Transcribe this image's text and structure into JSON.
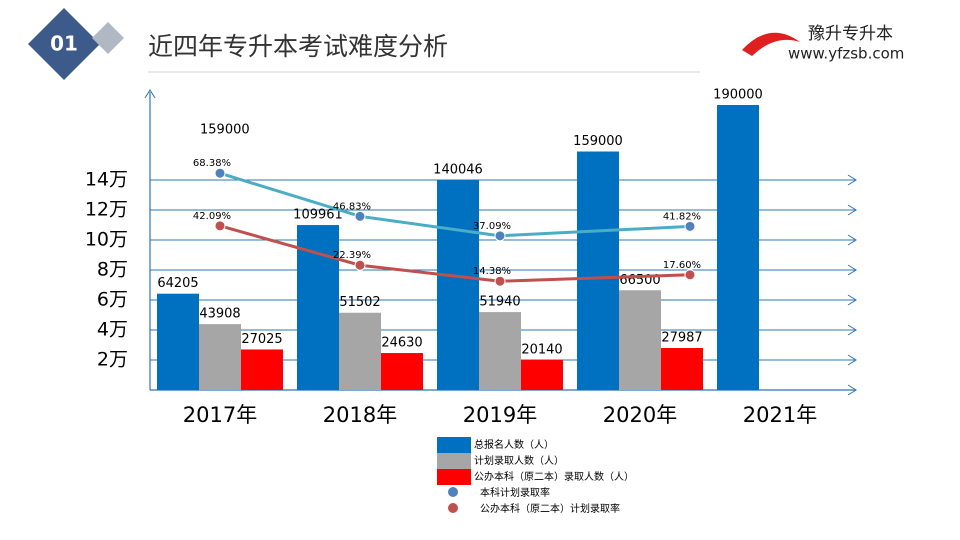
{
  "header": {
    "badge": "01",
    "title": "近四年专升本考试难度分析",
    "logo": "豫升专升本",
    "url": "www.yfzsb.com"
  },
  "chart_data": {
    "type": "bar",
    "annotations": [
      "159000"
    ],
    "categories": [
      "2017年",
      "2018年",
      "2019年",
      "2020年",
      "2021年"
    ],
    "ylim": [
      0,
      200000
    ],
    "yticks": [
      {
        "value": 20000,
        "label": "2万"
      },
      {
        "value": 40000,
        "label": "4万"
      },
      {
        "value": 60000,
        "label": "6万"
      },
      {
        "value": 80000,
        "label": "8万"
      },
      {
        "value": 100000,
        "label": "10万"
      },
      {
        "value": 120000,
        "label": "12万"
      },
      {
        "value": 140000,
        "label": "14万"
      }
    ],
    "y2lim": [
      -40,
      110
    ],
    "grid": true,
    "series": [
      {
        "name": "总报名人数（人）",
        "type": "bar",
        "color": "#0070c0",
        "values": [
          64205,
          109961,
          140046,
          159000,
          190000
        ]
      },
      {
        "name": "计划录取人数（人）",
        "type": "bar",
        "color": "#a6a6a6",
        "values": [
          43908,
          51502,
          51940,
          66500,
          null
        ]
      },
      {
        "name": "公办本科（原二本）录取人数（人）",
        "type": "bar",
        "color": "#ff0000",
        "values": [
          27025,
          24630,
          20140,
          27987,
          null
        ]
      },
      {
        "name": "本科计划录取率",
        "type": "line",
        "axis": "y2",
        "color": "#4f81bd",
        "line_color": "#4bacc6",
        "values": [
          68.38,
          46.83,
          37.09,
          41.82,
          null
        ],
        "value_labels": [
          "68.38%",
          "46.83%",
          "37.09%",
          "41.82%",
          null
        ]
      },
      {
        "name": "公办本科（原二本）计划录取率",
        "type": "line",
        "axis": "y2",
        "color": "#c0504d",
        "line_color": "#c0504d",
        "values": [
          42.09,
          22.39,
          14.38,
          17.6,
          null
        ],
        "value_labels": [
          "42.09%",
          "22.39%",
          "14.38%",
          "17.60%",
          null
        ]
      }
    ]
  }
}
